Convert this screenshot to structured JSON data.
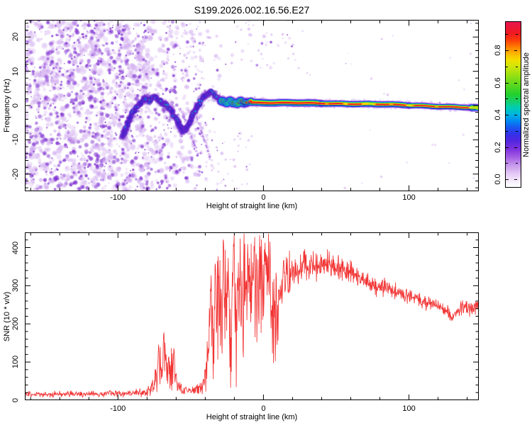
{
  "title": "S199.2026.002.16.56.E27",
  "colors": {
    "axis": "#000000",
    "snr_line": "#f23333",
    "noise_light": "#cfa8ef",
    "noise_dark": "#7a28cf",
    "trace_halo": "#6a1ec6",
    "trace_blue": "#3220d2",
    "trace_cyan": "#00c2e6",
    "trace_green": "#2bd13a",
    "trace_red": "#ea1830",
    "band_purple": "#8a2be2",
    "band_blue": "#3322dd",
    "band_cyan": "#00b8e8",
    "band_green": "#2fd02f",
    "band_lime": "#b8e418",
    "band_yellow": "#f7d800",
    "band_orange": "#ff9400",
    "band_red": "#ec1126",
    "band_darkline": "#1a18b0",
    "fuzz": "#c9a6ee"
  },
  "colorbar": {
    "label": "Normalized spectral amplitude",
    "tick_labels": [
      "0.0",
      "0.2",
      "0.4",
      "0.6",
      "0.8"
    ],
    "tick_values": [
      0,
      0.2,
      0.4,
      0.6,
      0.8
    ],
    "minor_values": [
      0.1,
      0.3,
      0.5,
      0.7,
      0.9
    ],
    "stops": [
      [
        0,
        "#ffffff"
      ],
      [
        0.03,
        "#f6effc"
      ],
      [
        0.08,
        "#e4c9f5"
      ],
      [
        0.13,
        "#c89aec"
      ],
      [
        0.18,
        "#a55fe3"
      ],
      [
        0.23,
        "#7d31dd"
      ],
      [
        0.28,
        "#5326e0"
      ],
      [
        0.32,
        "#3330e8"
      ],
      [
        0.36,
        "#1a55f0"
      ],
      [
        0.4,
        "#008af2"
      ],
      [
        0.44,
        "#00b4e0"
      ],
      [
        0.48,
        "#00cdb4"
      ],
      [
        0.52,
        "#16cf6a"
      ],
      [
        0.56,
        "#22d02e"
      ],
      [
        0.62,
        "#5cd81f"
      ],
      [
        0.68,
        "#9be012"
      ],
      [
        0.73,
        "#cfe60a"
      ],
      [
        0.77,
        "#f2de00"
      ],
      [
        0.81,
        "#ffb400"
      ],
      [
        0.85,
        "#ff7a00"
      ],
      [
        0.89,
        "#fb3c0c"
      ],
      [
        0.93,
        "#f01a1e"
      ],
      [
        1,
        "#e61550"
      ]
    ]
  },
  "chart_data": [
    {
      "type": "heatmap",
      "title": "S199.2026.002.16.56.E27",
      "xlabel": "Height of straight line (km)",
      "ylabel": "Frequency (Hz)",
      "colorbar_label": "Normalized spectral amplitude",
      "xlim": [
        -164,
        148
      ],
      "ylim": [
        -25,
        25
      ],
      "xticks": [
        -100,
        0,
        100
      ],
      "yticks": [
        -20,
        -10,
        0,
        10,
        20
      ],
      "x_minor_step": 20,
      "y_minor_step": 2,
      "grid": false,
      "description": "Dynamic spectrum: broadband purple noise below -40 km height, wavy low-amplitude carrier track from -95 to -28 km oscillating about 0 Hz, and a narrow high-amplitude (red-core) carrier line near 0 Hz from -28 km to the right edge, slowly descending from +1 Hz to -0.7 Hz.",
      "noise_zones": [
        [
          -165,
          -120,
          820,
          0.34,
          1.5,
          5.5,
          -25,
          25
        ],
        [
          -120,
          -78,
          820,
          0.34,
          1.5,
          5.5,
          -25,
          25
        ],
        [
          -78,
          -58,
          230,
          0.32,
          1.5,
          5.0,
          -25,
          25
        ],
        [
          -58,
          -42,
          150,
          0.3,
          1.5,
          4.5,
          -25,
          25
        ],
        [
          -42,
          -29,
          55,
          0.28,
          1.2,
          4.0,
          -25,
          25
        ],
        [
          -29,
          22,
          48,
          0.22,
          1.2,
          3.5,
          11,
          25
        ],
        [
          -29,
          -8,
          30,
          0.25,
          1.2,
          3.0,
          -25,
          -8
        ],
        [
          22,
          148,
          28,
          0.12,
          1.0,
          2.4,
          -25,
          25
        ]
      ],
      "trace_path": [
        [
          -97,
          -9,
          0.3
        ],
        [
          -94,
          -6,
          0.4
        ],
        [
          -91,
          -3,
          0.5
        ],
        [
          -88,
          -1,
          0.55
        ],
        [
          -85,
          0.5,
          0.6
        ],
        [
          -82,
          2,
          0.7
        ],
        [
          -79,
          1,
          0.75
        ],
        [
          -76,
          2.5,
          0.8
        ],
        [
          -73,
          2,
          0.85
        ],
        [
          -70,
          1,
          0.8
        ],
        [
          -67,
          0,
          0.7
        ],
        [
          -64,
          -1,
          0.6
        ],
        [
          -61,
          -3,
          0.5
        ],
        [
          -58,
          -5.5,
          0.4
        ],
        [
          -55,
          -7.5,
          0.35
        ],
        [
          -52,
          -6,
          0.4
        ],
        [
          -49,
          -3,
          0.5
        ],
        [
          -46,
          -0.5,
          0.6
        ],
        [
          -43,
          1.5,
          0.7
        ],
        [
          -40,
          3,
          0.8
        ],
        [
          -37,
          4.3,
          0.9
        ],
        [
          -34,
          3.5,
          0.85
        ],
        [
          -31,
          2,
          0.8
        ],
        [
          -28.5,
          1.3,
          0.85
        ]
      ],
      "band_path": [
        [
          -28.5,
          1.3
        ],
        [
          -24,
          1.0
        ],
        [
          -18,
          0.8
        ],
        [
          -12,
          1.0
        ],
        [
          -6,
          0.9
        ],
        [
          0,
          0.85
        ],
        [
          10,
          0.8
        ],
        [
          25,
          0.75
        ],
        [
          45,
          0.6
        ],
        [
          65,
          0.45
        ],
        [
          85,
          0.3
        ],
        [
          105,
          0.05
        ],
        [
          125,
          -0.35
        ],
        [
          140,
          -0.6
        ],
        [
          146.8,
          -0.75
        ]
      ],
      "streaks": [
        [
          -57,
          -1,
          -45,
          -14
        ],
        [
          -47,
          -2,
          -36,
          -16
        ],
        [
          -63,
          -2,
          -56,
          -9
        ]
      ]
    },
    {
      "type": "line",
      "xlabel": "Height of straight line (km)",
      "ylabel": "SNR (10 * v/v)",
      "xlim": [
        -164,
        148
      ],
      "ylim": [
        0,
        440
      ],
      "xticks": [
        -100,
        0,
        100
      ],
      "yticks": [
        0,
        100,
        200,
        300,
        400
      ],
      "x_minor_step": 20,
      "y_minor_step": 20,
      "grid": false,
      "series": [
        {
          "name": "SNR",
          "color": "#f23333",
          "keypoints": [
            [
              -164,
              15,
              9
            ],
            [
              -150,
              15,
              9
            ],
            [
              -135,
              16,
              10
            ],
            [
              -120,
              16,
              10
            ],
            [
              -105,
              17,
              10
            ],
            [
              -92,
              18,
              11
            ],
            [
              -83,
              20,
              13
            ],
            [
              -77,
              26,
              18
            ],
            [
              -74,
              55,
              45
            ],
            [
              -71,
              95,
              75
            ],
            [
              -68,
              85,
              70
            ],
            [
              -65,
              95,
              80
            ],
            [
              -62,
              70,
              55
            ],
            [
              -59,
              40,
              28
            ],
            [
              -56,
              26,
              16
            ],
            [
              -52,
              22,
              13
            ],
            [
              -48,
              24,
              14
            ],
            [
              -44,
              30,
              20
            ],
            [
              -41,
              45,
              35
            ],
            [
              -38,
              120,
              110
            ],
            [
              -35,
              190,
              180
            ],
            [
              -32,
              210,
              200
            ],
            [
              -29,
              230,
              220
            ],
            [
              -26,
              240,
              225
            ],
            [
              -23,
              250,
              235
            ],
            [
              -20,
              260,
              240
            ],
            [
              -17,
              240,
              225
            ],
            [
              -14,
              260,
              230
            ],
            [
              -11,
              300,
              150
            ],
            [
              -8,
              310,
              150
            ],
            [
              -5,
              290,
              170
            ],
            [
              -2,
              310,
              150
            ],
            [
              1,
              330,
              130
            ],
            [
              4,
              300,
              170
            ],
            [
              6,
              230,
              170
            ],
            [
              8,
              230,
              160
            ],
            [
              10,
              270,
              140
            ],
            [
              13,
              310,
              110
            ],
            [
              16,
              330,
              80
            ],
            [
              19,
              335,
              60
            ],
            [
              23,
              345,
              52
            ],
            [
              27,
              352,
              46
            ],
            [
              32,
              356,
              42
            ],
            [
              37,
              352,
              42
            ],
            [
              42,
              362,
              40
            ],
            [
              47,
              356,
              38
            ],
            [
              52,
              348,
              38
            ],
            [
              57,
              342,
              36
            ],
            [
              62,
              332,
              35
            ],
            [
              67,
              322,
              34
            ],
            [
              72,
              312,
              33
            ],
            [
              77,
              302,
              32
            ],
            [
              82,
              296,
              31
            ],
            [
              87,
              290,
              30
            ],
            [
              92,
              282,
              29
            ],
            [
              97,
              276,
              28
            ],
            [
              102,
              270,
              27
            ],
            [
              107,
              263,
              26
            ],
            [
              112,
              256,
              25
            ],
            [
              117,
              250,
              25
            ],
            [
              122,
              246,
              24
            ],
            [
              126,
              238,
              23
            ],
            [
              129,
              218,
              22
            ],
            [
              133,
              232,
              23
            ],
            [
              137,
              242,
              23
            ],
            [
              141,
              236,
              22
            ],
            [
              144,
              242,
              24
            ],
            [
              147,
              252,
              22
            ]
          ],
          "spikes": [
            [
              -72,
              150
            ],
            [
              -68.5,
              188
            ],
            [
              -61.5,
              142
            ],
            [
              -36,
              330
            ],
            [
              -33,
              370
            ],
            [
              -27.5,
              428
            ],
            [
              -24,
              330
            ],
            [
              -20.5,
              434
            ],
            [
              -16,
              350
            ],
            [
              1.5,
              400
            ],
            [
              4.5,
              420
            ]
          ]
        }
      ]
    }
  ]
}
